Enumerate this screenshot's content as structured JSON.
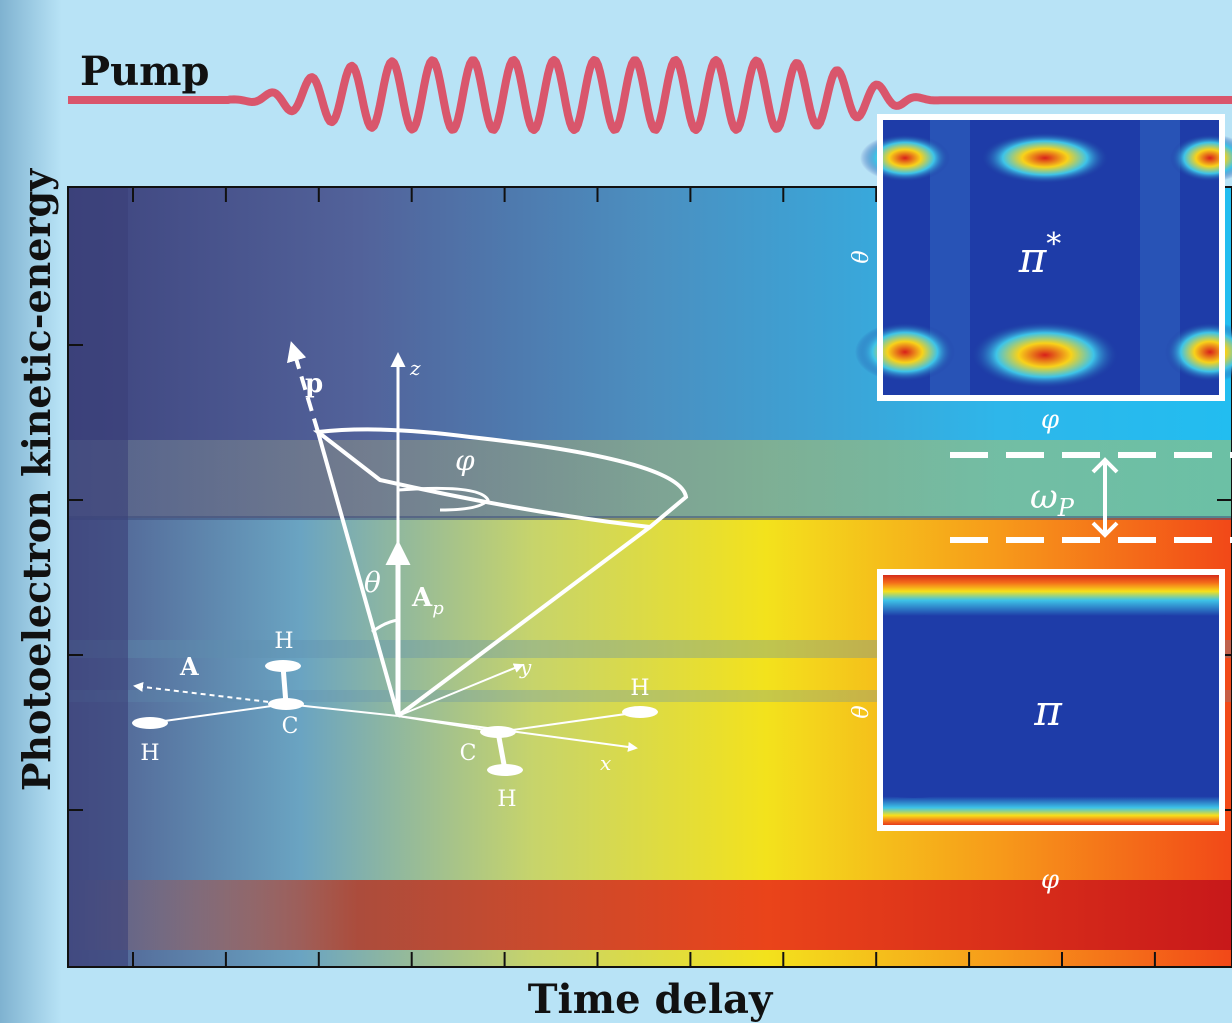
{
  "labels": {
    "pump": "Pump",
    "y_axis": "Photoelectron kinetic-energy",
    "x_axis": "Time delay",
    "vector_p": "p",
    "axis_z": "z",
    "axis_y": "y",
    "axis_x": "x",
    "angle_phi": "φ",
    "angle_theta": "θ",
    "vector_Ap": {
      "base": "A",
      "sub": "p"
    },
    "vector_A": "A",
    "atoms": [
      "H",
      "C",
      "H",
      "C",
      "H",
      "H"
    ],
    "inset_top": {
      "label": {
        "base": "π",
        "sup": "*"
      },
      "y_axis": "θ",
      "x_axis": "φ"
    },
    "inset_bottom": {
      "label": "π",
      "y_axis": "θ",
      "x_axis": "φ"
    },
    "gap": {
      "base": "ω",
      "sub": "P"
    }
  }
}
